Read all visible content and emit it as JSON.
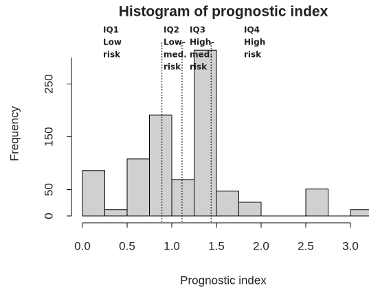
{
  "chart_data": {
    "type": "histogram",
    "title": "Histogram of prognostic index",
    "x_label": "Prognostic index",
    "y_label": "Frequency",
    "bins": [
      0,
      0.25,
      0.5,
      0.75,
      1.0,
      1.25,
      1.5,
      1.75,
      2.0,
      2.25,
      2.5,
      2.75,
      3.0,
      3.25
    ],
    "values": [
      86,
      12,
      108,
      191,
      69,
      314,
      47,
      26,
      0,
      0,
      51,
      0,
      12
    ],
    "color": "#d0d0d0",
    "xlim": [
      -0.05,
      3.25
    ],
    "ylim": [
      -10,
      320
    ],
    "xticks": [
      {
        "value": 0,
        "label": "0.0"
      },
      {
        "value": 0.5,
        "label": "0.5"
      },
      {
        "value": 1,
        "label": "1.0"
      },
      {
        "value": 1.5,
        "label": "1.5"
      },
      {
        "value": 2,
        "label": "2.0"
      },
      {
        "value": 2.5,
        "label": "2.5"
      },
      {
        "value": 3,
        "label": "3.0"
      }
    ],
    "yticks": [
      0,
      50,
      150,
      250
    ],
    "quartile_lines": [
      0.89,
      1.115,
      1.44
    ],
    "annotations": [
      [
        "IQ1",
        "Low",
        "risk"
      ],
      [
        "IQ2",
        "Low-",
        "med.",
        "risk"
      ],
      [
        "IQ3",
        "High-",
        "med.",
        "risk"
      ],
      [
        "IQ4",
        "High",
        "risk"
      ]
    ]
  }
}
